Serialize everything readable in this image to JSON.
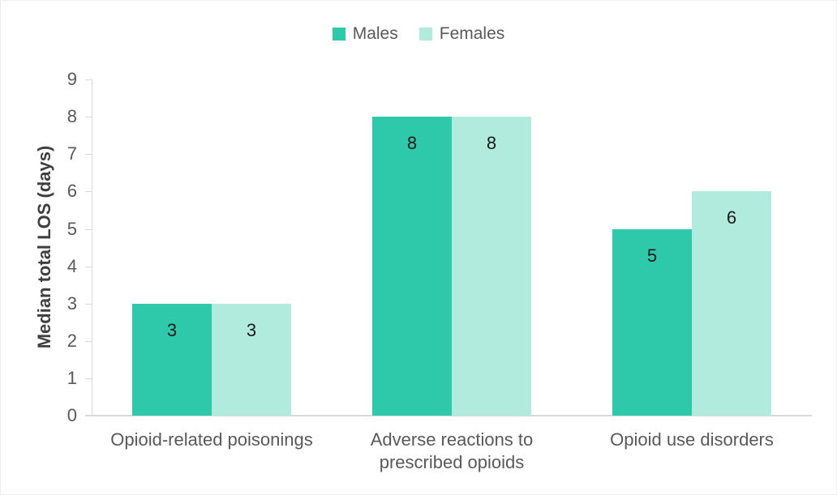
{
  "chart_data": {
    "type": "bar",
    "title": "",
    "categories": [
      "Opioid-related poisonings",
      "Adverse reactions to prescribed opioids",
      "Opioid use disorders"
    ],
    "categories_lines": [
      [
        "Opioid-related poisonings"
      ],
      [
        "Adverse reactions to",
        "prescribed opioids"
      ],
      [
        "Opioid use disorders"
      ]
    ],
    "series": [
      {
        "name": "Males",
        "values": [
          3,
          8,
          5
        ],
        "color": "#2ec9aa"
      },
      {
        "name": "Females",
        "values": [
          3,
          8,
          6
        ],
        "color": "#b1ebdd"
      }
    ],
    "xlabel": "",
    "ylabel": "Median total LOS (days)",
    "ylim": [
      0,
      9
    ],
    "ytick_step": 1,
    "grid": false,
    "legend_position": "top",
    "data_labels": "inside-end"
  },
  "colors": {
    "background": "#ffffff",
    "axis_line": "#d9d9d9",
    "tick_label": "#595959",
    "category_label": "#595959",
    "axis_title": "#3f3f3f",
    "legend_text": "#595959",
    "data_label": "#1a1a1a",
    "male_bar": "#2ec9aa",
    "female_bar": "#b1ebdd"
  }
}
